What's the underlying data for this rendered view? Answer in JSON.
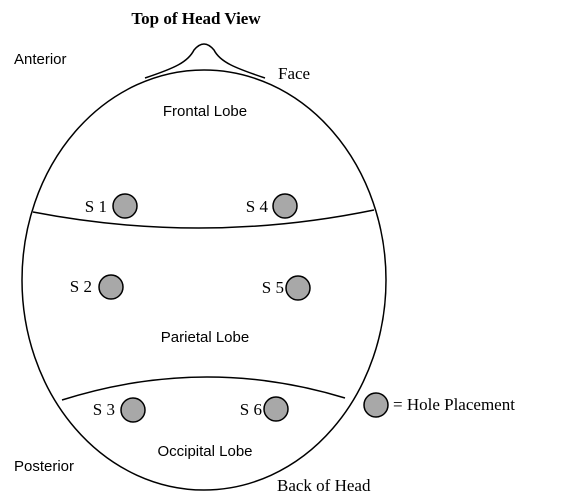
{
  "title": "Top of Head View",
  "orientation": {
    "anterior": "Anterior",
    "posterior": "Posterior",
    "face": "Face",
    "back": "Back of Head"
  },
  "lobes": [
    "Frontal Lobe",
    "Parietal Lobe",
    "Occipital Lobe"
  ],
  "sites": [
    "S 1",
    "S 2",
    "S 3",
    "S 4",
    "S 5",
    "S 6"
  ],
  "legend": {
    "label": "= Hole Placement"
  }
}
